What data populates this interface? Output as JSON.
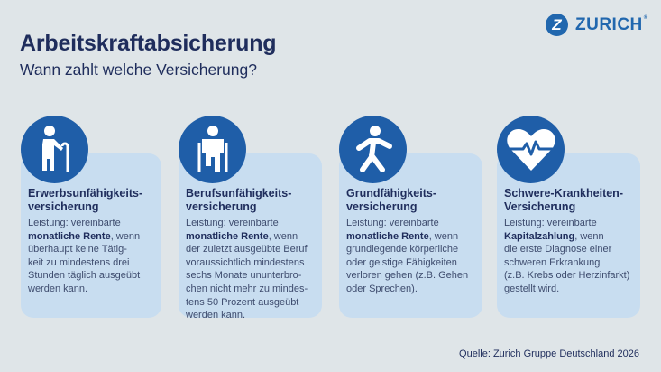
{
  "header": {
    "title": "Arbeitskraftabsicherung",
    "subtitle": "Wann zahlt welche Versicherung?"
  },
  "logo": {
    "mark": "Z",
    "text": "ZURICH",
    "registered": "®"
  },
  "colors": {
    "background": "#dfe5e8",
    "card": "#c8ddf0",
    "icon_circle": "#1f5ea8",
    "heading": "#1f2d5c",
    "brand": "#2167ae"
  },
  "cards": [
    {
      "icon": "elderly-person-with-cane-icon",
      "title_lines": [
        "Erwerbsunfähigkeits-",
        "versicherung"
      ],
      "body_lines": [
        [
          {
            "t": "Leistung: vereinbarte"
          }
        ],
        [
          {
            "t": "monatliche Rente",
            "b": true
          },
          {
            "t": ", wenn"
          }
        ],
        [
          {
            "t": "überhaupt keine Tätig-"
          }
        ],
        [
          {
            "t": "keit zu mindestens drei"
          }
        ],
        [
          {
            "t": "Stunden täglich ausgeübt"
          }
        ],
        [
          {
            "t": "werden kann."
          }
        ]
      ]
    },
    {
      "icon": "person-on-crutches-icon",
      "title_lines": [
        "Berufsunfähigkeits-",
        "versicherung"
      ],
      "body_lines": [
        [
          {
            "t": "Leistung: vereinbarte"
          }
        ],
        [
          {
            "t": "monatliche Rente",
            "b": true
          },
          {
            "t": ", wenn"
          }
        ],
        [
          {
            "t": "der zuletzt ausgeübte Beruf"
          }
        ],
        [
          {
            "t": "voraussichtlich mindestens"
          }
        ],
        [
          {
            "t": "sechs Monate ununterbro-"
          }
        ],
        [
          {
            "t": "chen nicht mehr zu mindes-"
          }
        ],
        [
          {
            "t": "tens 50 Prozent ausgeübt"
          }
        ],
        [
          {
            "t": "werden kann."
          }
        ]
      ]
    },
    {
      "icon": "walking-person-icon",
      "title_lines": [
        "Grundfähigkeits-",
        "versicherung"
      ],
      "body_lines": [
        [
          {
            "t": "Leistung: vereinbarte"
          }
        ],
        [
          {
            "t": "monatliche Rente",
            "b": true
          },
          {
            "t": ", wenn"
          }
        ],
        [
          {
            "t": "grundlegende körperliche"
          }
        ],
        [
          {
            "t": "oder geistige Fähigkeiten"
          }
        ],
        [
          {
            "t": "verloren gehen (z.B. Gehen"
          }
        ],
        [
          {
            "t": "oder Sprechen)."
          }
        ]
      ]
    },
    {
      "icon": "heart-pulse-icon",
      "title_lines": [
        "Schwere-Krankheiten-",
        "Versicherung"
      ],
      "body_lines": [
        [
          {
            "t": "Leistung: vereinbarte"
          }
        ],
        [
          {
            "t": "Kapitalzahlung",
            "b": true
          },
          {
            "t": ", wenn"
          }
        ],
        [
          {
            "t": "die erste Diagnose einer"
          }
        ],
        [
          {
            "t": "schweren Erkrankung"
          }
        ],
        [
          {
            "t": "(z.B. Krebs oder Herzinfarkt)"
          }
        ],
        [
          {
            "t": "gestellt wird."
          }
        ]
      ]
    }
  ],
  "source": "Quelle: Zurich Gruppe Deutschland 2026"
}
